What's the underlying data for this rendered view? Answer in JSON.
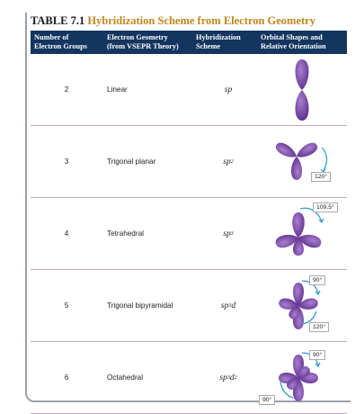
{
  "table": {
    "title_number": "TABLE 7.1",
    "title_text": "Hybridization Scheme from Electron Geometry",
    "headers": {
      "col1_line1": "Number of",
      "col1_line2": "Electron Groups",
      "col2_line1": "Electron Geometry",
      "col2_line2": "(from VSEPR Theory)",
      "col3_line1": "Hybridization",
      "col3_line2": "Scheme",
      "col4_line1": "Orbital Shapes and",
      "col4_line2": "Relative Orientation"
    },
    "rows": [
      {
        "groups": "2",
        "geometry": "Linear",
        "scheme_base": "sp",
        "scheme_sup1": "",
        "scheme_mid": "",
        "scheme_sup2": "",
        "angles": []
      },
      {
        "groups": "3",
        "geometry": "Trigonal planar",
        "scheme_base": "sp",
        "scheme_sup1": "2",
        "scheme_mid": "",
        "scheme_sup2": "",
        "angles": [
          "120°"
        ]
      },
      {
        "groups": "4",
        "geometry": "Tetrahedral",
        "scheme_base": "sp",
        "scheme_sup1": "3",
        "scheme_mid": "",
        "scheme_sup2": "",
        "angles": [
          "109.5°"
        ]
      },
      {
        "groups": "5",
        "geometry": "Trigonal bipyramidal",
        "scheme_base": "sp",
        "scheme_sup1": "3",
        "scheme_mid": "d",
        "scheme_sup2": "",
        "angles": [
          "90°",
          "120°"
        ]
      },
      {
        "groups": "6",
        "geometry": "Octahedral",
        "scheme_base": "sp",
        "scheme_sup1": "3",
        "scheme_mid": "d",
        "scheme_sup2": "2",
        "angles": [
          "90°",
          "90°"
        ]
      }
    ]
  },
  "colors": {
    "header_bg": "#13355f",
    "title_accent": "#c0861c",
    "orbital": "#7b4aa8",
    "row_divider": "#c9a5c6",
    "arrow": "#2a9ad6"
  }
}
